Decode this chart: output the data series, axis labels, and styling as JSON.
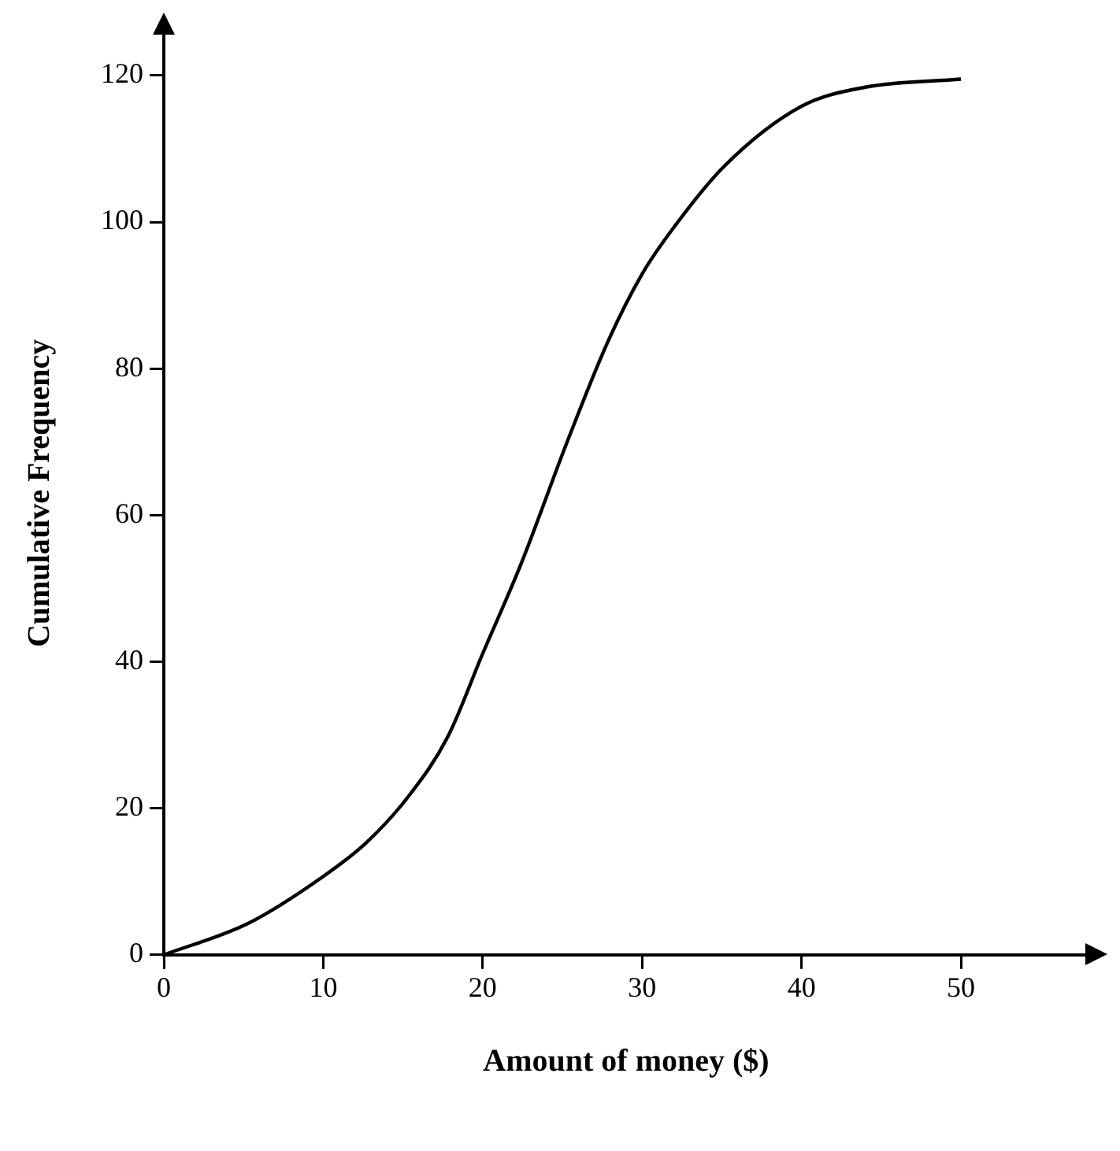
{
  "chart_data": {
    "type": "line",
    "xlabel": "Amount of money ($)",
    "ylabel": "Cumulative Frequency",
    "x": [
      0,
      5.3,
      10,
      12.7,
      15.3,
      17.8,
      20,
      22.4,
      25.3,
      27.9,
      30,
      31.9,
      35.1,
      40,
      44,
      50
    ],
    "values": [
      0,
      4.3,
      10.7,
      15.3,
      21.5,
      29.7,
      41.1,
      53.3,
      70,
      83.9,
      92.9,
      99,
      107.5,
      115.8,
      118.4,
      119.5
    ],
    "color": "#000000",
    "marker": "none",
    "line_style": "solid",
    "grid": false,
    "legend": false,
    "xlim": [
      0,
      58
    ],
    "ylim": [
      0,
      126
    ],
    "xticks": [
      0,
      10,
      20,
      30,
      40,
      50
    ],
    "yticks": [
      0,
      20,
      40,
      60,
      80,
      100,
      120
    ]
  }
}
